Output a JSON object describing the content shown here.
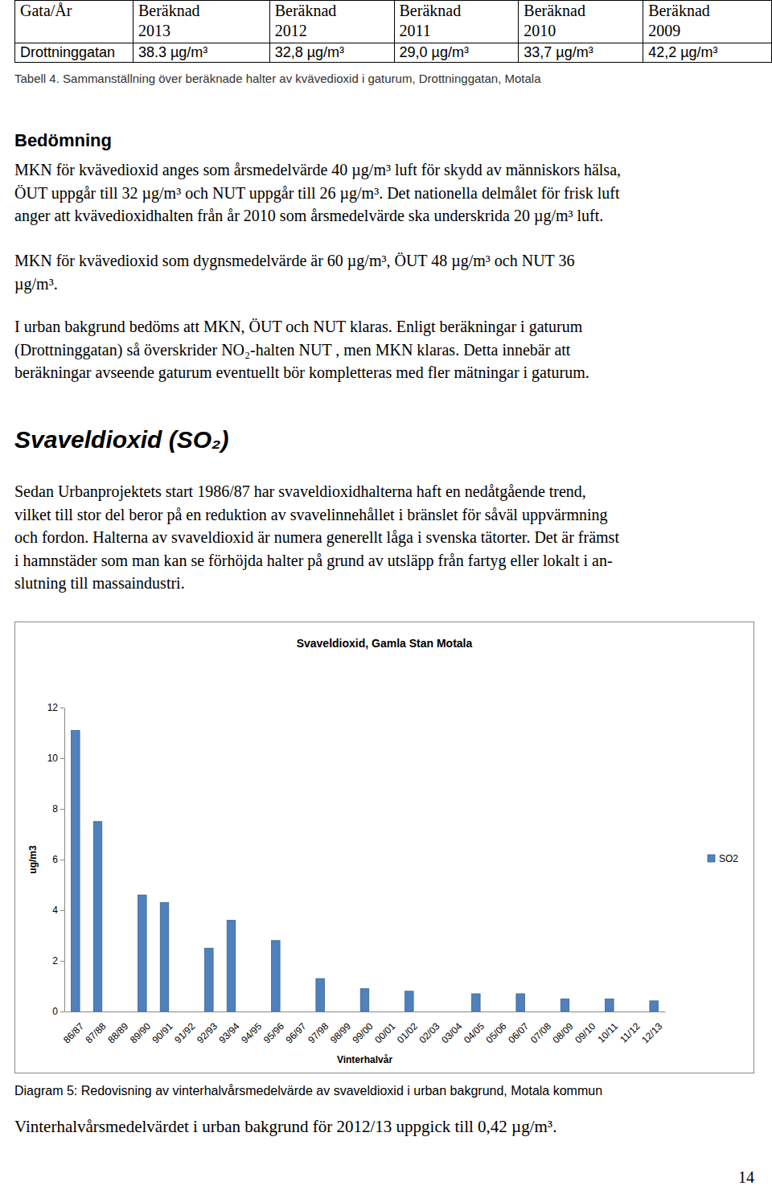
{
  "table": {
    "headers": [
      "Gata/År",
      "Beräknad\n2013",
      "Beräknad\n2012",
      "Beräknad\n2011",
      "Beräknad\n2010",
      "Beräknad\n2009"
    ],
    "rows": [
      [
        "Drottninggatan",
        "38.3 µg/m³",
        "32,8 µg/m³",
        "29,0 µg/m³",
        "33,7 µg/m³",
        "42,2 µg/m³"
      ]
    ]
  },
  "table_caption": "Tabell 4. Sammanställning över beräknade halter av kvävedioxid i gaturum, Drottninggatan, Motala",
  "sections": [
    {
      "heading": "Bedömning",
      "paragraphs": [
        [
          "MKN för kvävedioxid anges som årsmedelvärde 40 µg/m³ luft för skydd av människors hälsa,",
          "ÖUT uppgår till 32 µg/m³ och NUT uppgår till 26 µg/m³. Det nationella delmålet för frisk luft",
          "anger att kvävedioxidhalten från år 2010 som årsmedelvärde ska underskrida 20 µg/m³ luft."
        ],
        [
          "MKN för kvävedioxid som dygnsmedelvärde är 60 µg/m³, ÖUT 48 µg/m³  och NUT 36",
          "µg/m³."
        ],
        [
          "I urban bakgrund bedöms att MKN, ÖUT och NUT klaras. Enligt beräkningar i gaturum",
          "(Drottninggatan) så överskrider NO₂-halten NUT , men MKN klaras. Detta innebär att",
          "beräkningar avseende gaturum eventuellt bör kompletteras med fler mätningar i gaturum."
        ]
      ]
    },
    {
      "heading": "Svaveldioxid (SO₂)",
      "paragraphs": [
        [
          "Sedan Urbanprojektets start 1986/87 har svaveldioxidhalterna haft en nedåtgående trend,",
          "vilket till stor del beror på en reduktion av svavelinnehållet i bränslet för såväl uppvärmning",
          "och fordon. Halterna av svaveldioxid är numera generellt låga i svenska tätorter. Det är främst",
          "i hamnstäder som man kan se förhöjda halter på grund av utsläpp från fartyg eller lokalt i an-",
          "slutning till massaindustri."
        ]
      ]
    }
  ],
  "chart_data": {
    "type": "bar",
    "title": "Svaveldioxid, Gamla Stan Motala",
    "x_label": "Vinterhalvår",
    "y_label": "ug/m3",
    "categories": [
      "86/87",
      "87/88",
      "88/89",
      "89/90",
      "90/91",
      "91/92",
      "92/93",
      "93/94",
      "94/95",
      "95/96",
      "96/97",
      "97/98",
      "98/99",
      "99/00",
      "00/01",
      "01/02",
      "02/03",
      "03/04",
      "04/05",
      "05/06",
      "06/07",
      "07/08",
      "08/09",
      "09/10",
      "10/11",
      "11/12",
      "12/13"
    ],
    "series": [
      {
        "name": "SO2",
        "color": "#4f81bd",
        "values": [
          11.1,
          7.5,
          null,
          4.6,
          4.3,
          null,
          2.5,
          3.6,
          null,
          2.8,
          null,
          1.3,
          null,
          0.9,
          null,
          0.8,
          null,
          null,
          0.7,
          null,
          0.7,
          null,
          0.5,
          null,
          0.5,
          null,
          0.42
        ]
      }
    ],
    "ylim": [
      0,
      12
    ],
    "yticks": [
      0,
      2,
      4,
      6,
      8,
      10,
      12
    ],
    "grid": false,
    "legend": "right"
  },
  "chart_caption": "Diagram 5: Redovisning av vinterhalvårsmedelvärde av svaveldioxid i urban bakgrund, Motala kommun",
  "closing_text": "Vinterhalvårsmedelvärdet i urban bakgrund för 2012/13 uppgick till 0,42 µg/m³.",
  "page_number": "14"
}
